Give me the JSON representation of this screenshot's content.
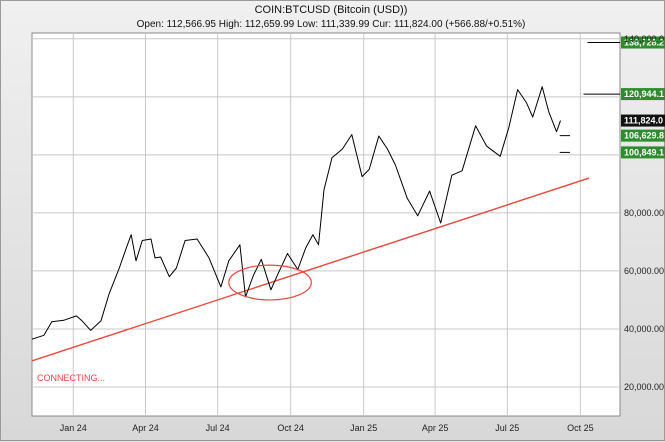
{
  "chart_data": {
    "type": "line",
    "title": "COIN:BTCUSD (Bitcoin (USD))",
    "ohlc": {
      "open_label": "Open:",
      "open": "112,566.95",
      "high_label": "High:",
      "high": "112,659.99",
      "low_label": "Low:",
      "low": "111,339.99",
      "cur_label": "Cur:",
      "cur": "111,824.00",
      "change": "(+566.88/+0.51%)"
    },
    "xlim": [
      "2023-11-10",
      "2025-11-20"
    ],
    "ylim": [
      10000,
      142000
    ],
    "x_ticks": [
      {
        "label": "Jan 24",
        "date": "2024-01-01"
      },
      {
        "label": "Apr 24",
        "date": "2024-04-01"
      },
      {
        "label": "Jul 24",
        "date": "2024-07-01"
      },
      {
        "label": "Oct 24",
        "date": "2024-10-01"
      },
      {
        "label": "Jan 25",
        "date": "2025-01-01"
      },
      {
        "label": "Apr 25",
        "date": "2025-04-01"
      },
      {
        "label": "Jul 25",
        "date": "2025-07-01"
      },
      {
        "label": "Oct 25",
        "date": "2025-10-01"
      }
    ],
    "y_ticks": [
      {
        "value": 20000,
        "label": "20,000.00"
      },
      {
        "value": 40000,
        "label": "40,000.00"
      },
      {
        "value": 60000,
        "label": "60,000.00"
      },
      {
        "value": 80000,
        "label": "80,000.00"
      },
      {
        "value": 100000,
        "label": ""
      },
      {
        "value": 120000,
        "label": ""
      },
      {
        "value": 140000,
        "label": "140,000.0"
      }
    ],
    "grid": true,
    "series": [
      {
        "color": "#000000",
        "points": [
          [
            "2023-11-10",
            36500
          ],
          [
            "2023-11-25",
            37800
          ],
          [
            "2023-12-05",
            42500
          ],
          [
            "2023-12-20",
            43000
          ],
          [
            "2024-01-05",
            44500
          ],
          [
            "2024-01-12",
            42800
          ],
          [
            "2024-01-23",
            39500
          ],
          [
            "2024-02-05",
            42800
          ],
          [
            "2024-02-15",
            52000
          ],
          [
            "2024-02-28",
            61000
          ],
          [
            "2024-03-08",
            68000
          ],
          [
            "2024-03-14",
            72500
          ],
          [
            "2024-03-20",
            63500
          ],
          [
            "2024-03-28",
            70500
          ],
          [
            "2024-04-08",
            71000
          ],
          [
            "2024-04-13",
            64500
          ],
          [
            "2024-04-20",
            64800
          ],
          [
            "2024-05-01",
            58000
          ],
          [
            "2024-05-10",
            61000
          ],
          [
            "2024-05-21",
            70500
          ],
          [
            "2024-06-05",
            71000
          ],
          [
            "2024-06-20",
            64500
          ],
          [
            "2024-07-05",
            54500
          ],
          [
            "2024-07-15",
            63500
          ],
          [
            "2024-07-29",
            69000
          ],
          [
            "2024-08-05",
            51000
          ],
          [
            "2024-08-15",
            58500
          ],
          [
            "2024-08-25",
            64000
          ],
          [
            "2024-09-06",
            53500
          ],
          [
            "2024-09-15",
            59000
          ],
          [
            "2024-09-27",
            66000
          ],
          [
            "2024-10-10",
            60500
          ],
          [
            "2024-10-20",
            68000
          ],
          [
            "2024-10-29",
            72500
          ],
          [
            "2024-11-05",
            69000
          ],
          [
            "2024-11-12",
            88000
          ],
          [
            "2024-11-22",
            99000
          ],
          [
            "2024-12-05",
            102000
          ],
          [
            "2024-12-17",
            107000
          ],
          [
            "2024-12-30",
            92500
          ],
          [
            "2025-01-08",
            95000
          ],
          [
            "2025-01-20",
            106500
          ],
          [
            "2025-01-31",
            102000
          ],
          [
            "2025-02-10",
            96500
          ],
          [
            "2025-02-25",
            85000
          ],
          [
            "2025-03-10",
            79000
          ],
          [
            "2025-03-25",
            87500
          ],
          [
            "2025-04-08",
            76500
          ],
          [
            "2025-04-22",
            93000
          ],
          [
            "2025-05-05",
            94500
          ],
          [
            "2025-05-22",
            110000
          ],
          [
            "2025-06-05",
            103000
          ],
          [
            "2025-06-22",
            99500
          ],
          [
            "2025-07-03",
            109500
          ],
          [
            "2025-07-14",
            122500
          ],
          [
            "2025-07-25",
            118000
          ],
          [
            "2025-08-02",
            113000
          ],
          [
            "2025-08-14",
            123500
          ],
          [
            "2025-08-22",
            115000
          ],
          [
            "2025-09-01",
            108000
          ],
          [
            "2025-09-06",
            111824
          ]
        ]
      }
    ],
    "trendline": {
      "color": "#e8483a",
      "points": [
        [
          "2023-11-10",
          29000
        ],
        [
          "2025-10-12",
          92000
        ]
      ]
    },
    "target_lines": [
      {
        "value": 138728,
        "from": "2025-10-10",
        "to": "2025-11-20"
      },
      {
        "value": 120944,
        "from": "2025-10-05",
        "to": "2025-11-20"
      },
      {
        "value": 106629,
        "from": "2025-09-05",
        "to": "2025-09-18"
      },
      {
        "value": 100849,
        "from": "2025-09-05",
        "to": "2025-09-18"
      }
    ],
    "annotations": [
      {
        "type": "ellipse",
        "center": [
          "2024-09-05",
          56000
        ],
        "rx_days": 52,
        "ry_value": 6000,
        "color": "#e8483a"
      }
    ],
    "badges": [
      {
        "label": "138,728.2",
        "value": 138728,
        "bg": "#2e8b2e",
        "fg": "#ffffff"
      },
      {
        "label": "120,944.1",
        "value": 120944,
        "bg": "#2e8b2e",
        "fg": "#ffffff"
      },
      {
        "label": "111,824.0",
        "value": 111824,
        "bg": "#111111",
        "fg": "#ffffff"
      },
      {
        "label": "106,629.8",
        "value": 106629,
        "bg": "#2e8b2e",
        "fg": "#ffffff"
      },
      {
        "label": "100,849.1",
        "value": 100849,
        "bg": "#2e8b2e",
        "fg": "#ffffff"
      }
    ],
    "note": "CONNECTING..."
  }
}
